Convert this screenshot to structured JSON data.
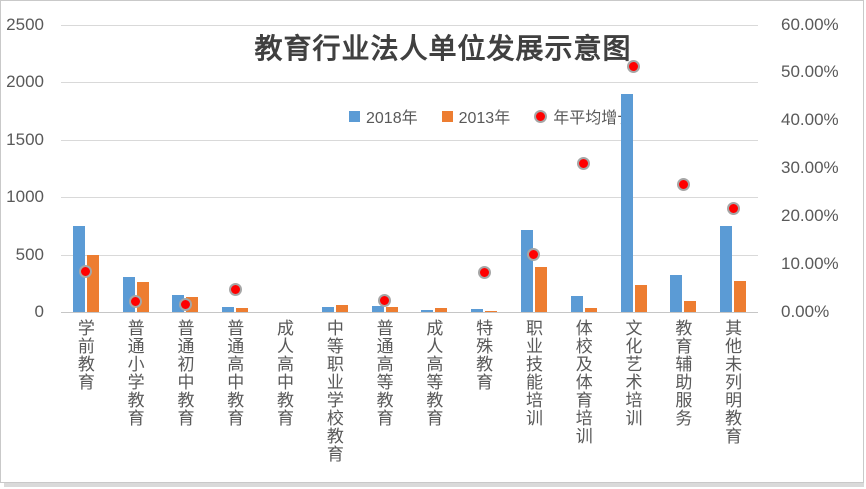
{
  "chart_data": {
    "type": "bar",
    "subtype": "grouped-bars-with-scatter-overlay",
    "title": "教育行业法人单位发展示意图",
    "categories": [
      "学前教育",
      "普通小学教育",
      "普通初中教育",
      "普通高中教育",
      "成人高中教育",
      "中等职业学校教育",
      "普通高等教育",
      "成人高等教育",
      "特殊教育",
      "职业技能培训",
      "体校及体育培训",
      "文化艺术培训",
      "教育辅助服务",
      "其他未列明教育"
    ],
    "series": [
      {
        "name": "2018年",
        "type": "bar",
        "axis": "left",
        "color": "#5B9BD5",
        "values": [
          745,
          305,
          150,
          45,
          0,
          46,
          52,
          15,
          23,
          715,
          142,
          1900,
          325,
          746
        ]
      },
      {
        "name": "2013年",
        "type": "bar",
        "axis": "left",
        "color": "#ED7D31",
        "values": [
          492,
          263,
          127,
          34,
          0,
          62,
          46,
          33,
          11,
          395,
          37,
          235,
          100,
          272
        ]
      },
      {
        "name": "年平均增长",
        "type": "scatter",
        "axis": "right",
        "color": "#FF0000",
        "marker_ring_color": "#A6A6A6",
        "values_pct": [
          8.4,
          2.2,
          1.6,
          4.7,
          null,
          null,
          2.3,
          null,
          8.2,
          12.1,
          31.0,
          51.3,
          26.6,
          21.7
        ]
      }
    ],
    "left_axis": {
      "min": 0,
      "max": 2500,
      "step": 500,
      "ticks": [
        "0",
        "500",
        "1000",
        "1500",
        "2000",
        "2500"
      ]
    },
    "right_axis": {
      "min": 0,
      "max": 60,
      "step": 10,
      "ticks": [
        "0.00%",
        "10.00%",
        "20.00%",
        "30.00%",
        "40.00%",
        "50.00%",
        "60.00%"
      ]
    },
    "grid": "horizontal-major-on",
    "legend_position": "top-center-below-title",
    "colors": {
      "gridline": "#D9D9D9",
      "axis_text": "#595959",
      "title_text": "#404040",
      "dot_fill": "#FF0000",
      "dot_ring": "#A6A6A6",
      "chart_border": "#C9C9C9"
    }
  }
}
